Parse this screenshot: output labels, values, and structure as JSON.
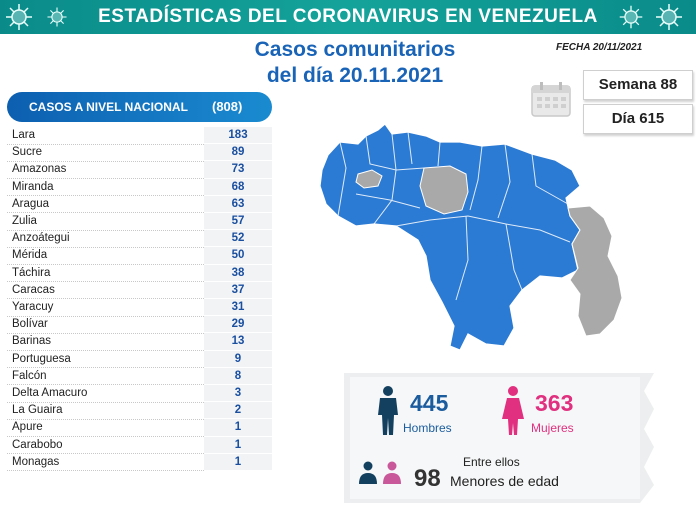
{
  "header": {
    "title": "ESTADÍSTICAS DEL CORONAVIRUS EN VENEZUELA"
  },
  "subtitle": {
    "line1": "Casos comunitarios",
    "line2": "del día 20.11.2021"
  },
  "fecha": "FECHA 20/11/2021",
  "semana": "Semana 88",
  "dia": "Día 615",
  "cases": {
    "label": "CASOS A NIVEL NACIONAL",
    "total": "(808)",
    "rows": [
      {
        "name": "Lara",
        "value": "183"
      },
      {
        "name": "Sucre",
        "value": "89"
      },
      {
        "name": "Amazonas",
        "value": "73"
      },
      {
        "name": "Miranda",
        "value": "68"
      },
      {
        "name": "Aragua",
        "value": "63"
      },
      {
        "name": "Zulia",
        "value": "57"
      },
      {
        "name": "Anzoátegui",
        "value": "52"
      },
      {
        "name": "Mérida",
        "value": "50"
      },
      {
        "name": "Táchira",
        "value": "38"
      },
      {
        "name": "Caracas",
        "value": "37"
      },
      {
        "name": "Yaracuy",
        "value": "31"
      },
      {
        "name": "Bolívar",
        "value": "29"
      },
      {
        "name": "Barinas",
        "value": "13"
      },
      {
        "name": "Portuguesa",
        "value": "9"
      },
      {
        "name": "Falcón",
        "value": "8"
      },
      {
        "name": "Delta Amacuro",
        "value": "3"
      },
      {
        "name": "La Guaira",
        "value": "2"
      },
      {
        "name": "Apure",
        "value": "1"
      },
      {
        "name": "Carabobo",
        "value": "1"
      },
      {
        "name": "Monagas",
        "value": "1"
      }
    ]
  },
  "stats": {
    "men_count": "445",
    "men_label": "Hombres",
    "women_count": "363",
    "women_label": "Mujeres",
    "minors_intro": "Entre ellos",
    "minors_count": "98",
    "minors_label": "Menores de edad"
  },
  "colors": {
    "header": "#0a8b8a",
    "blue": "#1a64b8",
    "map_blue": "#2b7ad3",
    "map_gray": "#a9a9a9",
    "pink": "#e0307f",
    "navy": "#1b5c9e"
  },
  "icons": [
    "virus-icon",
    "calendar-icon",
    "man-icon",
    "woman-icon"
  ]
}
